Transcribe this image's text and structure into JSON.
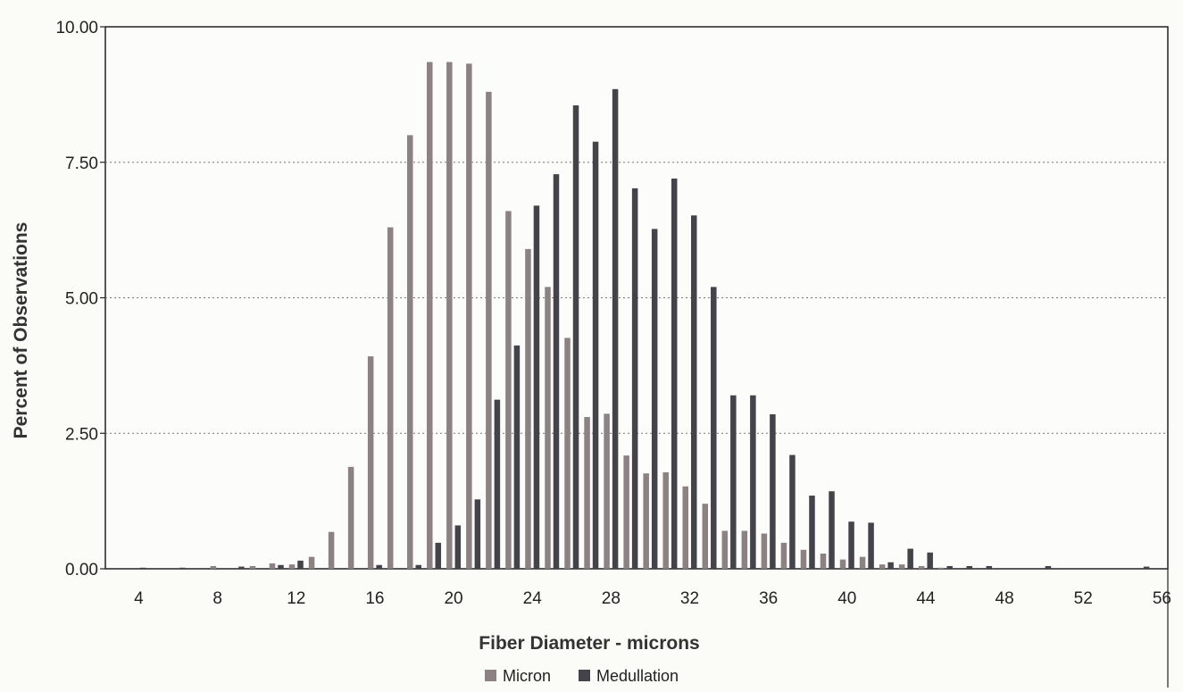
{
  "chart_data": {
    "type": "bar",
    "title": "",
    "xlabel": "Fiber Diameter - microns",
    "ylabel": "Percent of Observations",
    "ylim": [
      0,
      10
    ],
    "y_ticks": [
      "0.00",
      "2.50",
      "5.00",
      "7.50",
      "10.00"
    ],
    "x_ticks": [
      "4",
      "8",
      "12",
      "16",
      "20",
      "24",
      "28",
      "32",
      "36",
      "40",
      "44",
      "48",
      "52",
      "56"
    ],
    "xlim": [
      2.3,
      56.3
    ],
    "grid": "horizontal dotted",
    "legend_position": "bottom-center",
    "x": [
      3,
      4,
      5,
      6,
      7,
      8,
      9,
      10,
      11,
      12,
      13,
      14,
      15,
      16,
      17,
      18,
      19,
      20,
      21,
      22,
      23,
      24,
      25,
      26,
      27,
      28,
      29,
      30,
      31,
      32,
      33,
      34,
      35,
      36,
      37,
      38,
      39,
      40,
      41,
      42,
      43,
      44,
      45,
      46,
      47,
      48,
      49,
      50,
      51,
      52,
      53,
      54,
      55
    ],
    "series": [
      {
        "name": "Micron",
        "color": "#8c8284",
        "values": [
          0,
          0,
          0,
          0,
          0,
          0.05,
          0,
          0.05,
          0.1,
          0.08,
          0.22,
          0.68,
          1.88,
          3.92,
          6.3,
          8.0,
          9.35,
          9.35,
          9.32,
          8.8,
          6.6,
          5.9,
          5.2,
          4.26,
          2.8,
          2.86,
          2.09,
          1.76,
          1.78,
          1.52,
          1.2,
          0.7,
          0.7,
          0.65,
          0.48,
          0.35,
          0.28,
          0.17,
          0.22,
          0.08,
          0.08,
          0.05,
          0.02,
          0,
          0,
          0,
          0,
          0,
          0,
          0,
          0,
          0,
          0
        ]
      },
      {
        "name": "Medullation",
        "color": "#45434a",
        "values": [
          0,
          0.02,
          0,
          0.02,
          0,
          0,
          0.04,
          0,
          0.07,
          0.15,
          0,
          0,
          0,
          0.07,
          0,
          0.07,
          0.48,
          0.8,
          1.28,
          3.12,
          4.12,
          6.7,
          7.28,
          8.55,
          7.88,
          8.85,
          7.02,
          6.27,
          7.2,
          6.52,
          5.2,
          3.2,
          3.2,
          2.85,
          2.1,
          1.35,
          1.43,
          0.87,
          0.85,
          0.12,
          0.37,
          0.3,
          0.05,
          0.05,
          0.05,
          0,
          0,
          0.05,
          0,
          0,
          0,
          0,
          0.04
        ]
      }
    ]
  }
}
